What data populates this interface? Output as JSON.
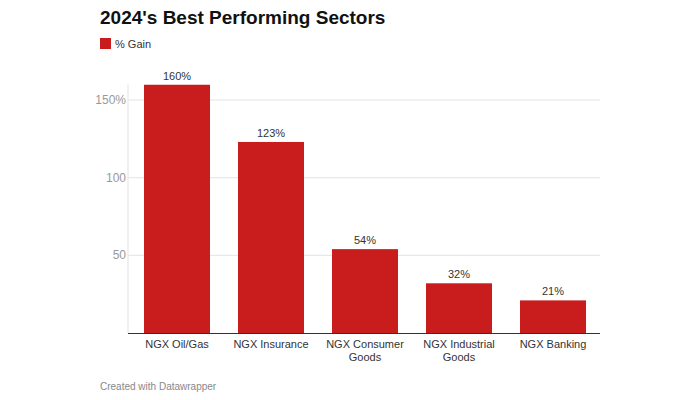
{
  "chart_data": {
    "type": "bar",
    "title": "2024's Best Performing Sectors",
    "categories": [
      "NGX Oil/Gas",
      "NGX Insurance",
      "NGX Consumer Goods",
      "NGX Industrial Goods",
      "NGX Banking"
    ],
    "series": [
      {
        "name": "% Gain",
        "color": "#c91d1d",
        "values": [
          160,
          123,
          54,
          32,
          21
        ],
        "value_labels": [
          "160%",
          "123%",
          "54%",
          "32%",
          "21%"
        ]
      }
    ],
    "ylim": [
      0,
      160
    ],
    "yticks": [
      50,
      100,
      {
        "value": 150,
        "label": "150%"
      }
    ],
    "grid": true,
    "legend": "top-left",
    "data_labels": true,
    "source": "Created with Datawrapper"
  }
}
